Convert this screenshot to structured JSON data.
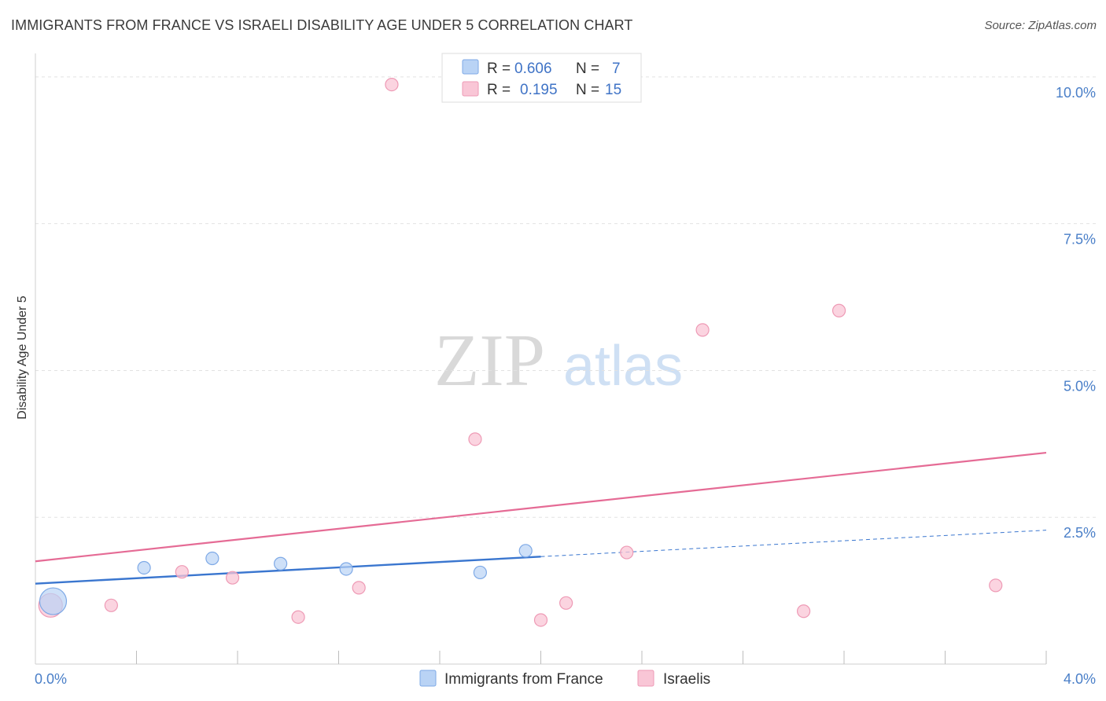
{
  "header": {
    "title": "IMMIGRANTS FROM FRANCE VS ISRAELI DISABILITY AGE UNDER 5 CORRELATION CHART",
    "source": "Source: ZipAtlas.com"
  },
  "watermark": {
    "zip": "ZIP",
    "atlas": "atlas"
  },
  "colors": {
    "blue_fill": "#b9d3f5",
    "blue_stroke": "#7ea9e6",
    "blue_line": "#3a76cf",
    "pink_fill": "#f9c6d6",
    "pink_stroke": "#ee9ab5",
    "pink_line": "#e56b95",
    "axis_text": "#4a7fc8"
  },
  "legend": {
    "rows": [
      {
        "r_label": "R =",
        "r_value": "0.606",
        "n_label": "N =",
        "n_value": "7",
        "series": "france"
      },
      {
        "r_label": "R =",
        "r_value": "0.195",
        "n_label": "N =",
        "n_value": "15",
        "series": "israelis"
      }
    ]
  },
  "bottom_legend": [
    {
      "label": "Immigrants from France",
      "series": "france"
    },
    {
      "label": "Israelis",
      "series": "israelis"
    }
  ],
  "chart_data": {
    "type": "scatter",
    "title": "IMMIGRANTS FROM FRANCE VS ISRAELI DISABILITY AGE UNDER 5 CORRELATION CHART",
    "xlabel": "",
    "ylabel": "Disability Age Under 5",
    "xlim": [
      0,
      4.0
    ],
    "ylim": [
      0,
      10.4
    ],
    "x_tick_labels": [
      "0.0%",
      "4.0%"
    ],
    "y_ticks": [
      2.5,
      5.0,
      7.5,
      10.0
    ],
    "y_tick_labels": [
      "2.5%",
      "5.0%",
      "7.5%",
      "10.0%"
    ],
    "grid": true,
    "series": [
      {
        "name": "Immigrants from France",
        "key": "france",
        "points": [
          {
            "x": 0.07,
            "y": 1.07,
            "size": "large"
          },
          {
            "x": 0.43,
            "y": 1.64
          },
          {
            "x": 0.7,
            "y": 1.8
          },
          {
            "x": 0.97,
            "y": 1.71
          },
          {
            "x": 1.23,
            "y": 1.62
          },
          {
            "x": 1.76,
            "y": 1.56
          },
          {
            "x": 1.94,
            "y": 1.93
          }
        ],
        "trend": {
          "x0": 0.0,
          "y0": 1.37,
          "x1": 2.0,
          "y1": 1.83,
          "dash_to_x": 4.0,
          "dash_to_y": 2.28
        }
      },
      {
        "name": "Israelis",
        "key": "israelis",
        "points": [
          {
            "x": 0.06,
            "y": 1.0,
            "size": "medium"
          },
          {
            "x": 0.3,
            "y": 1.0
          },
          {
            "x": 0.58,
            "y": 1.57
          },
          {
            "x": 0.78,
            "y": 1.47
          },
          {
            "x": 1.04,
            "y": 0.8
          },
          {
            "x": 1.28,
            "y": 1.3
          },
          {
            "x": 1.41,
            "y": 9.87
          },
          {
            "x": 1.74,
            "y": 3.83
          },
          {
            "x": 2.0,
            "y": 0.75
          },
          {
            "x": 2.1,
            "y": 1.04
          },
          {
            "x": 2.34,
            "y": 1.9
          },
          {
            "x": 2.64,
            "y": 5.69
          },
          {
            "x": 3.18,
            "y": 6.02
          },
          {
            "x": 3.04,
            "y": 0.9
          },
          {
            "x": 3.8,
            "y": 1.34
          }
        ],
        "trend": {
          "x0": 0.0,
          "y0": 1.75,
          "x1": 4.0,
          "y1": 3.6
        }
      }
    ]
  }
}
